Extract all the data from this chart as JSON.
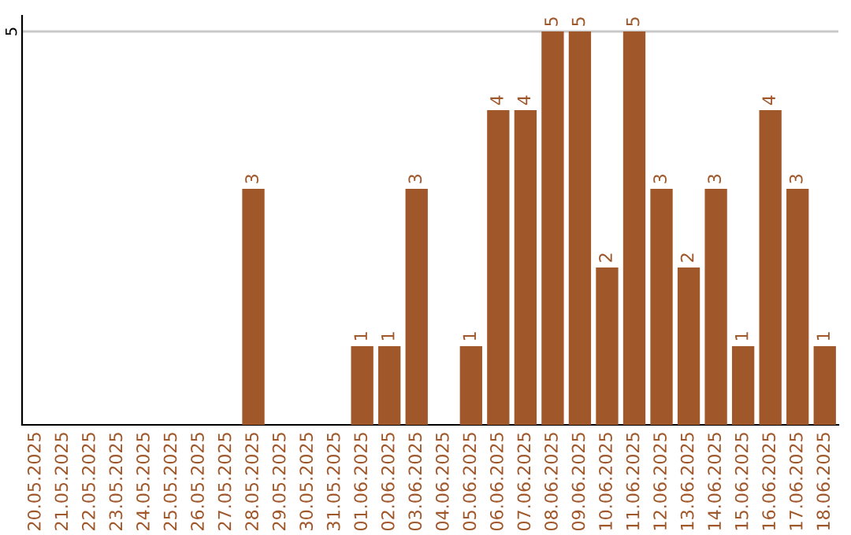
{
  "chart_data": {
    "type": "bar",
    "categories": [
      "20.05.2025",
      "21.05.2025",
      "22.05.2025",
      "23.05.2025",
      "24.05.2025",
      "25.05.2025",
      "26.05.2025",
      "27.05.2025",
      "28.05.2025",
      "29.05.2025",
      "30.05.2025",
      "31.05.2025",
      "01.06.2025",
      "02.06.2025",
      "03.06.2025",
      "04.06.2025",
      "05.06.2025",
      "06.06.2025",
      "07.06.2025",
      "08.06.2025",
      "09.06.2025",
      "10.06.2025",
      "11.06.2025",
      "12.06.2025",
      "13.06.2025",
      "14.06.2025",
      "15.06.2025",
      "16.06.2025",
      "17.06.2025",
      "18.06.2025"
    ],
    "values": [
      0,
      0,
      0,
      0,
      0,
      0,
      0,
      0,
      3,
      0,
      0,
      0,
      1,
      1,
      3,
      0,
      1,
      4,
      4,
      5,
      5,
      2,
      5,
      3,
      2,
      3,
      1,
      4,
      3,
      1
    ],
    "value_labels": [
      null,
      null,
      null,
      null,
      null,
      null,
      null,
      null,
      "3",
      null,
      null,
      null,
      "1",
      "1",
      "3",
      null,
      "1",
      "4",
      "4",
      "5",
      "5",
      "2",
      "5",
      "3",
      "2",
      "3",
      "1",
      "4",
      "3",
      "1"
    ],
    "color": "#a0572a",
    "ylim": [
      0,
      5.2
    ],
    "yticks": [
      5
    ],
    "grid": "y"
  }
}
